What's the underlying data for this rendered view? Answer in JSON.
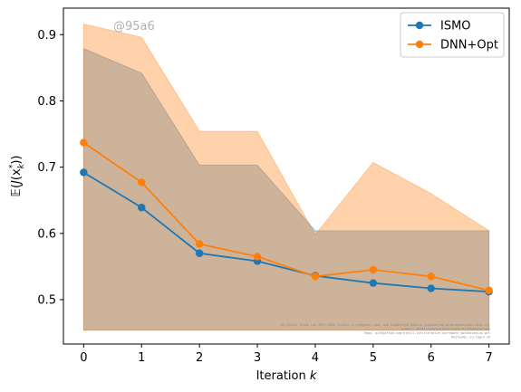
{
  "chart_data": {
    "type": "line",
    "x": [
      0,
      1,
      2,
      3,
      4,
      5,
      6,
      7
    ],
    "xlabel": "Iteration k",
    "ylabel": "E(J(x_k^*))",
    "xlim": [
      -0.35,
      7.35
    ],
    "ylim": [
      0.433,
      0.94
    ],
    "xticks": [
      0,
      1,
      2,
      3,
      4,
      5,
      6,
      7
    ],
    "yticks": [
      0.5,
      0.6,
      0.7,
      0.8,
      0.9
    ],
    "ytick_labels": [
      "0.5",
      "0.6",
      "0.7",
      "0.8",
      "0.9"
    ],
    "grid": false,
    "legend_position": "top-right",
    "series": [
      {
        "name": "ISMO",
        "color": "#1f77b4",
        "values": [
          0.692,
          0.639,
          0.57,
          0.558,
          0.536,
          0.525,
          0.517,
          0.512
        ],
        "band_lower": [
          0.454,
          0.454,
          0.454,
          0.454,
          0.454,
          0.454,
          0.454,
          0.454
        ],
        "band_upper": [
          0.879,
          0.842,
          0.703,
          0.703,
          0.604,
          0.604,
          0.604,
          0.604
        ]
      },
      {
        "name": "DNN+Opt",
        "color": "#ff7f0e",
        "values": [
          0.737,
          0.677,
          0.584,
          0.565,
          0.535,
          0.545,
          0.535,
          0.514
        ],
        "band_lower": [
          0.454,
          0.454,
          0.454,
          0.454,
          0.454,
          0.454,
          0.454,
          0.454
        ],
        "band_upper": [
          0.916,
          0.896,
          0.754,
          0.754,
          0.598,
          0.707,
          0.66,
          0.604
        ]
      }
    ],
    "annotations": {
      "watermark": "@95a6",
      "credit_lines": [
        "By Kjetil Olsen Lye 2019-2020 (kjetil.o.lye@gmail.com) and Siddhartha Mishra (siddhartha.mishra@sam.math.ethz.ch)",
        "Commit: 95a6f1ed3a3e9c8b7f13347bf77fd5b8d25c14aa",
        "Repo: git@github.com:kjetil-lye/iterative_surrogate_optimization.git",
        "Hostname: eu-login-19"
      ]
    }
  }
}
